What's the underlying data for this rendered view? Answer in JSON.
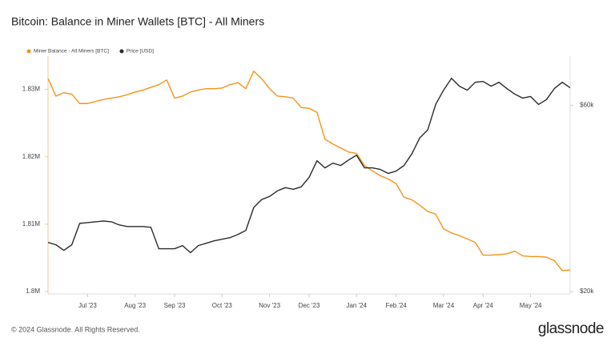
{
  "chart_data": {
    "type": "line",
    "title": "Bitcoin: Balance in Miner Wallets [BTC] - All Miners",
    "x": [
      null,
      null,
      null,
      null,
      null,
      "Jul '23",
      null,
      null,
      null,
      null,
      null,
      "Aug '23",
      null,
      null,
      null,
      null,
      "Sep '23",
      null,
      null,
      null,
      null,
      null,
      "Oct '23",
      null,
      null,
      null,
      null,
      null,
      "Nov '23",
      null,
      null,
      null,
      null,
      "Dec '23",
      null,
      null,
      null,
      null,
      null,
      "Jan '24",
      null,
      null,
      null,
      null,
      "Feb '24",
      null,
      null,
      null,
      null,
      null,
      "Mar '24",
      null,
      null,
      null,
      null,
      "Apr '24",
      null,
      null,
      null,
      null,
      null,
      "May '24",
      null,
      null,
      null,
      null,
      null
    ],
    "series": [
      {
        "name": "Miner Balance - All Miners [BTC]",
        "color": "#f7931a",
        "values": [
          1831600,
          1829000,
          1829500,
          1829300,
          1827900,
          1827900,
          1828200,
          1828500,
          1828700,
          1828900,
          1829200,
          1829600,
          1829900,
          1830300,
          1830700,
          1831400,
          1828700,
          1829000,
          1829600,
          1829900,
          1830100,
          1830100,
          1830200,
          1830700,
          1831000,
          1830100,
          1832700,
          1831600,
          1830100,
          1829000,
          1828900,
          1828700,
          1827300,
          1827200,
          1826600,
          1822600,
          1821900,
          1821300,
          1820700,
          1820500,
          1818700,
          1817900,
          1817200,
          1816700,
          1816000,
          1814000,
          1813600,
          1812800,
          1811900,
          1811500,
          1809300,
          1808700,
          1808300,
          1807800,
          1807300,
          1805400,
          1805400,
          1805500,
          1805600,
          1806000,
          1805300,
          1805200,
          1805200,
          1805100,
          1804600,
          1803100,
          1803200
        ]
      },
      {
        "name": "Price [USD]",
        "color": "#2b2b2b",
        "axis": "y2",
        "values": [
          30550,
          30040,
          28850,
          30040,
          34640,
          34810,
          34980,
          35150,
          34980,
          34300,
          33960,
          33960,
          33960,
          33790,
          29190,
          29190,
          29190,
          29870,
          28340,
          29870,
          30380,
          30890,
          31230,
          31570,
          32250,
          33110,
          38040,
          39740,
          40420,
          41620,
          42300,
          41960,
          42470,
          44510,
          48080,
          46550,
          47570,
          47060,
          48250,
          49270,
          46550,
          46550,
          46210,
          45360,
          45870,
          47060,
          49610,
          53020,
          54720,
          60170,
          63230,
          65780,
          64080,
          63230,
          64930,
          65100,
          64080,
          64930,
          63570,
          62380,
          61530,
          61870,
          60170,
          61190,
          63570,
          64930,
          63740
        ]
      }
    ],
    "ylim": [
      1799650,
      1834940
    ],
    "yticks": [
      {
        "value": 1800000,
        "label": "1.8M"
      },
      {
        "value": 1810000,
        "label": "1.81M"
      },
      {
        "value": 1820000,
        "label": "1.82M"
      },
      {
        "value": 1830000,
        "label": "1.83M"
      }
    ],
    "y2lim": [
      19490,
      70550
    ],
    "y2ticks": [
      {
        "value": 20000,
        "label": "$20k"
      },
      {
        "value": 60000,
        "label": "$60k"
      }
    ],
    "grid": false,
    "legend": "top-left"
  },
  "footer": {
    "copyright": "© 2024 Glassnode. All Rights Reserved.",
    "logo": "glassnode"
  }
}
